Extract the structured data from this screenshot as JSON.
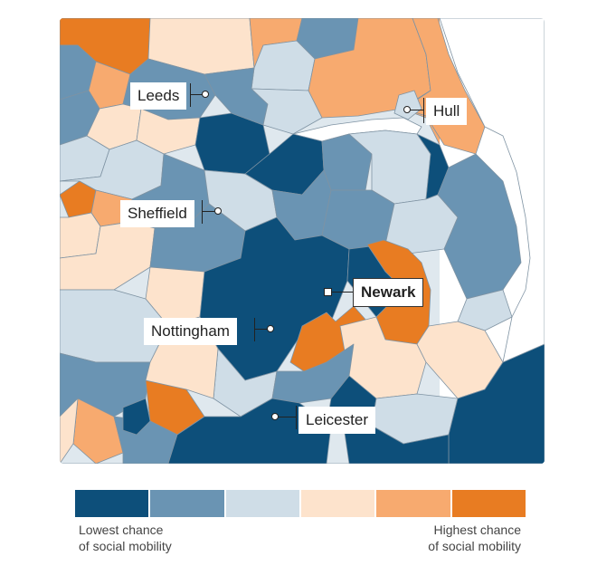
{
  "map": {
    "cities": [
      {
        "name": "Leeds",
        "emphasis": false
      },
      {
        "name": "Hull",
        "emphasis": false
      },
      {
        "name": "Sheffield",
        "emphasis": false
      },
      {
        "name": "Newark",
        "emphasis": true
      },
      {
        "name": "Nottingham",
        "emphasis": false
      },
      {
        "name": "Leicester",
        "emphasis": false
      }
    ]
  },
  "legend": {
    "low_line1": "Lowest chance",
    "low_line2": "of social mobility",
    "high_line1": "Highest chance",
    "high_line2": "of social mobility",
    "colors": [
      "#0d4f7a",
      "#6a94b3",
      "#cfdde7",
      "#fde3cc",
      "#f7aa6f",
      "#e87c22"
    ]
  },
  "colors": {
    "sea": "#ffffff",
    "land_default": "#f1f1f1",
    "border": "#8a9aa8"
  }
}
